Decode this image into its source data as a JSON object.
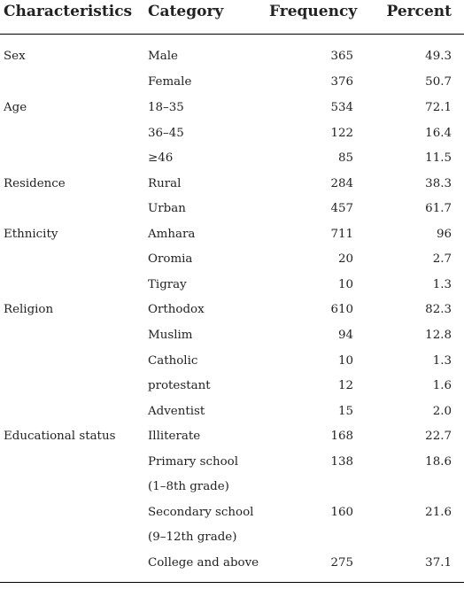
{
  "headers": {
    "characteristics": "Characteristics",
    "category": "Category",
    "frequency": "Frequency",
    "percent": "Percent"
  },
  "rows": [
    {
      "characteristic": "Sex",
      "category": "Male",
      "frequency": "365",
      "percent": "49.3"
    },
    {
      "characteristic": "",
      "category": "Female",
      "frequency": "376",
      "percent": "50.7"
    },
    {
      "characteristic": "Age",
      "category": "18–35",
      "frequency": "534",
      "percent": "72.1"
    },
    {
      "characteristic": "",
      "category": "36–45",
      "frequency": "122",
      "percent": "16.4"
    },
    {
      "characteristic": "",
      "category": "≥46",
      "frequency": "85",
      "percent": "11.5"
    },
    {
      "characteristic": "Residence",
      "category": "Rural",
      "frequency": "284",
      "percent": "38.3"
    },
    {
      "characteristic": "",
      "category": "Urban",
      "frequency": "457",
      "percent": "61.7"
    },
    {
      "characteristic": "Ethnicity",
      "category": "Amhara",
      "frequency": "711",
      "percent": "96"
    },
    {
      "characteristic": "",
      "category": "Oromia",
      "frequency": "20",
      "percent": "2.7"
    },
    {
      "characteristic": "",
      "category": "Tigray",
      "frequency": "10",
      "percent": "1.3"
    },
    {
      "characteristic": "Religion",
      "category": "Orthodox",
      "frequency": "610",
      "percent": "82.3"
    },
    {
      "characteristic": "",
      "category": "Muslim",
      "frequency": "94",
      "percent": "12.8"
    },
    {
      "characteristic": "",
      "category": "Catholic",
      "frequency": "10",
      "percent": "1.3"
    },
    {
      "characteristic": "",
      "category": "protestant",
      "frequency": "12",
      "percent": "1.6"
    },
    {
      "characteristic": "",
      "category": "Adventist",
      "frequency": "15",
      "percent": "2.0"
    },
    {
      "characteristic": "Educational status",
      "category": "Illiterate",
      "frequency": "168",
      "percent": "22.7"
    },
    {
      "characteristic": "",
      "category": "Primary school",
      "category_line2": "(1–8th grade)",
      "frequency": "138",
      "percent": "18.6"
    },
    {
      "characteristic": "",
      "category": "Secondary school",
      "category_line2": "(9–12th grade)",
      "frequency": "160",
      "percent": "21.6"
    },
    {
      "characteristic": "",
      "category": "College and above",
      "frequency": "275",
      "percent": "37.1"
    }
  ]
}
